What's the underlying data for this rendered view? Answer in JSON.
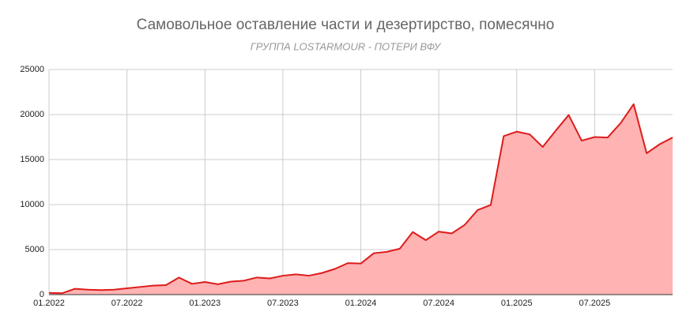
{
  "chart_data": {
    "type": "area",
    "title": "Самовольное оставление части и дезертирство, помесячно",
    "subtitle": "ГРУППА LOSTARMOUR - ПОТЕРИ ВФУ",
    "categories": [
      "01.2022",
      null,
      null,
      null,
      null,
      null,
      "07.2022",
      null,
      null,
      null,
      null,
      null,
      "01.2023",
      null,
      null,
      null,
      null,
      null,
      "07.2023",
      null,
      null,
      null,
      null,
      null,
      "01.2024",
      null,
      null,
      null,
      null,
      null,
      "07.2024",
      null,
      null,
      null,
      null,
      null,
      "01.2025",
      null,
      null,
      null,
      null,
      null,
      "07.2025",
      null,
      null,
      null,
      null,
      null,
      null
    ],
    "series": [
      {
        "name": "Самовольное оставление части и дезертирство",
        "color": "#dd1c1c",
        "fill": "#ffb3b3",
        "values": [
          200,
          150,
          650,
          550,
          500,
          550,
          700,
          850,
          1000,
          1050,
          1900,
          1200,
          1400,
          1150,
          1450,
          1550,
          1900,
          1800,
          2100,
          2250,
          2100,
          2400,
          2850,
          3500,
          3450,
          4600,
          4750,
          5100,
          6950,
          6050,
          7000,
          6800,
          7750,
          9400,
          9950,
          17600,
          18100,
          17800,
          16400,
          18200,
          19950,
          17100,
          17500,
          17450,
          19050,
          21150,
          15700,
          16700,
          17450
        ]
      }
    ],
    "ylim": [
      0,
      25000
    ],
    "yticks": [
      0,
      5000,
      10000,
      15000,
      20000,
      25000
    ],
    "grid": true
  }
}
